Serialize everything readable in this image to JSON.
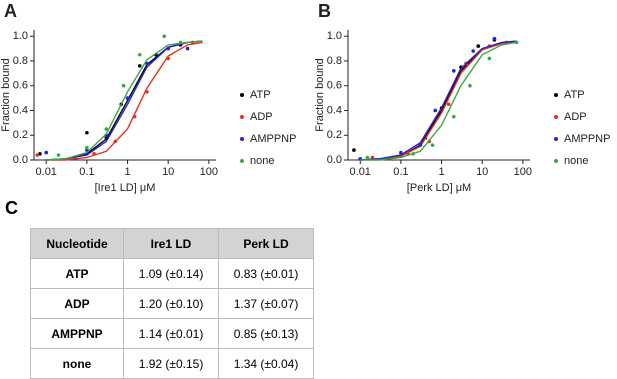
{
  "chart_data": [
    {
      "type": "scatter",
      "panel": "A",
      "xlabel": "[Ire1 LD]  μM",
      "ylabel": "Fraction bound",
      "log_x": true,
      "xlim": [
        0.005,
        150
      ],
      "xticks": [
        0.01,
        0.1,
        1,
        10,
        100
      ],
      "ylim": [
        0,
        1.05
      ],
      "yticks": [
        {
          "value": 0,
          "label": "0.0"
        },
        {
          "value": 0.2,
          "label": "0.2"
        },
        {
          "value": 0.4,
          "label": "0.4"
        },
        {
          "value": 0.6,
          "label": "0.6"
        },
        {
          "value": 0.8,
          "label": "0.8"
        },
        {
          "value": 1,
          "label": "1.0"
        }
      ],
      "grid": false,
      "legend": "right",
      "fit_x": [
        0.01,
        0.03,
        0.1,
        0.3,
        1,
        3,
        10,
        30,
        70
      ],
      "series": [
        {
          "name": "ATP",
          "color": "#000000",
          "x": [
            0.007,
            0.1,
            0.3,
            0.7,
            2,
            5,
            20
          ],
          "values": [
            0.05,
            0.22,
            0.18,
            0.45,
            0.76,
            0.85,
            0.93
          ],
          "fit_values": [
            0,
            0.01,
            0.05,
            0.17,
            0.48,
            0.77,
            0.91,
            0.95,
            0.96
          ]
        },
        {
          "name": "ADP",
          "color": "#e8311a",
          "x": [
            0.006,
            0.05,
            0.15,
            0.5,
            1.5,
            3,
            10,
            40
          ],
          "values": [
            0.04,
            0.02,
            0.05,
            0.15,
            0.35,
            0.55,
            0.82,
            0.95
          ],
          "fit_values": [
            0,
            0,
            0.02,
            0.07,
            0.25,
            0.58,
            0.84,
            0.93,
            0.95
          ]
        },
        {
          "name": "AMPPNP",
          "color": "#2323d8",
          "x": [
            0.01,
            0.1,
            0.3,
            1,
            3,
            10,
            30
          ],
          "values": [
            0.06,
            0.08,
            0.2,
            0.5,
            0.78,
            0.9,
            0.9
          ],
          "fit_values": [
            0,
            0.01,
            0.04,
            0.15,
            0.45,
            0.75,
            0.91,
            0.95,
            0.96
          ]
        },
        {
          "name": "none",
          "color": "#3aa845",
          "x": [
            0.02,
            0.1,
            0.3,
            0.8,
            2,
            8,
            20
          ],
          "values": [
            0.04,
            0.1,
            0.25,
            0.6,
            0.85,
            1.0,
            0.95
          ],
          "fit_values": [
            0,
            0.01,
            0.06,
            0.21,
            0.55,
            0.81,
            0.93,
            0.95,
            0.96
          ]
        }
      ]
    },
    {
      "type": "scatter",
      "panel": "B",
      "xlabel": "[Perk LD]  μM",
      "ylabel": "Fraction bound",
      "log_x": true,
      "xlim": [
        0.005,
        150
      ],
      "xticks": [
        0.01,
        0.1,
        1,
        10,
        100
      ],
      "ylim": [
        0,
        1.05
      ],
      "yticks": [
        {
          "value": 0,
          "label": "0.0"
        },
        {
          "value": 0.2,
          "label": "0.2"
        },
        {
          "value": 0.4,
          "label": "0.4"
        },
        {
          "value": 0.6,
          "label": "0.6"
        },
        {
          "value": 0.8,
          "label": "0.8"
        },
        {
          "value": 1,
          "label": "1.0"
        }
      ],
      "grid": false,
      "legend": "right",
      "fit_x": [
        0.01,
        0.03,
        0.1,
        0.3,
        1,
        3,
        10,
        30,
        70
      ],
      "series": [
        {
          "name": "ATP",
          "color": "#000000",
          "x": [
            0.007,
            0.1,
            0.4,
            1,
            3,
            8,
            20
          ],
          "values": [
            0.08,
            0.03,
            0.18,
            0.42,
            0.75,
            0.92,
            0.97
          ],
          "fit_values": [
            0,
            0.01,
            0.03,
            0.12,
            0.4,
            0.72,
            0.9,
            0.94,
            0.95
          ]
        },
        {
          "name": "ADP",
          "color": "#e8311a",
          "x": [
            0.02,
            0.15,
            0.5,
            1.5,
            4,
            15,
            40
          ],
          "values": [
            0.02,
            0.05,
            0.15,
            0.45,
            0.78,
            0.92,
            0.95
          ],
          "fit_values": [
            0,
            0.01,
            0.03,
            0.11,
            0.38,
            0.7,
            0.89,
            0.94,
            0.95
          ]
        },
        {
          "name": "AMPPNP",
          "color": "#2323d8",
          "x": [
            0.01,
            0.1,
            0.3,
            0.7,
            2,
            6,
            20
          ],
          "values": [
            0.01,
            0.06,
            0.12,
            0.4,
            0.72,
            0.88,
            0.98
          ],
          "fit_values": [
            0,
            0.01,
            0.04,
            0.14,
            0.42,
            0.74,
            0.9,
            0.95,
            0.96
          ]
        },
        {
          "name": "none",
          "color": "#3aa845",
          "x": [
            0.015,
            0.2,
            0.6,
            2,
            5,
            15,
            70
          ],
          "values": [
            0.02,
            0.05,
            0.12,
            0.35,
            0.6,
            0.82,
            0.95
          ],
          "fit_values": [
            0,
            0,
            0.02,
            0.07,
            0.28,
            0.6,
            0.85,
            0.93,
            0.95
          ]
        }
      ]
    }
  ],
  "table": {
    "panel": "C",
    "header": [
      "Nucleotide",
      "Ire1 LD",
      "Perk LD"
    ],
    "rows": [
      [
        "ATP",
        "1.09 (±0.14)",
        "0.83 (±0.01)"
      ],
      [
        "ADP",
        "1.20 (±0.10)",
        "1.37 (±0.07)"
      ],
      [
        "AMPPNP",
        "1.14 (±0.01)",
        "0.85 (±0.13)"
      ],
      [
        "none",
        "1.92 (±0.15)",
        "1.34 (±0.04)"
      ]
    ]
  }
}
